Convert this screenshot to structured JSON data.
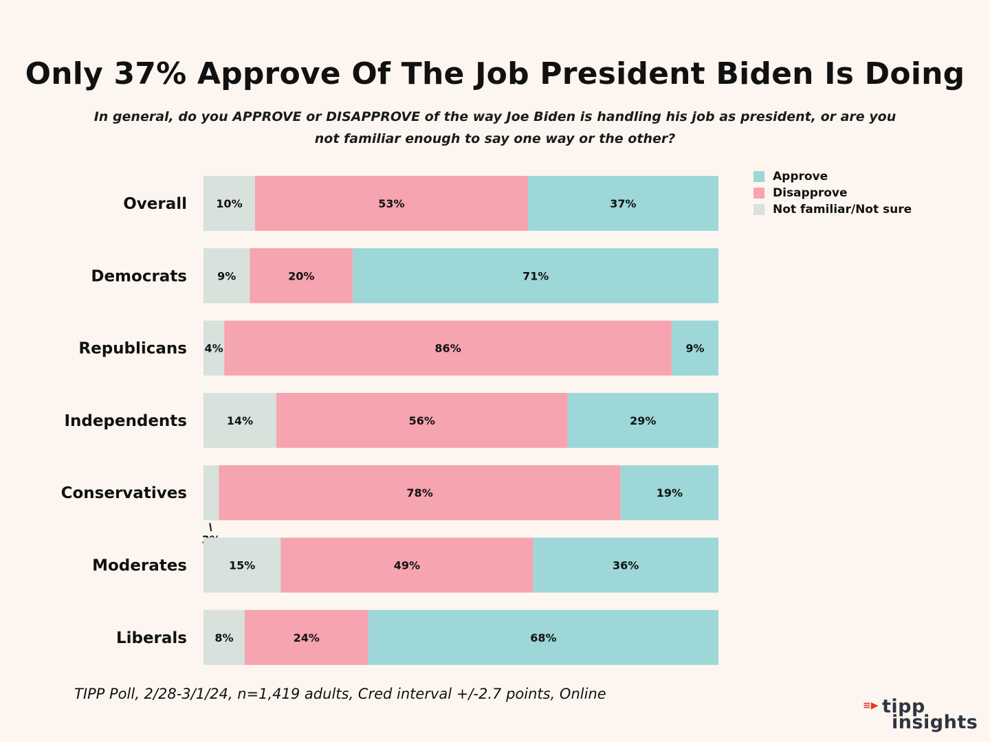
{
  "title": "Only 37% Approve Of The Job President Biden Is Doing",
  "subtitle": "In general, do you APPROVE or DISAPPROVE of the way Joe Biden is handling his job as president, or are you not familiar enough to say one way or the other?",
  "footer": "TIPP Poll, 2/28-3/1/24, n=1,419 adults, Cred interval +/-2.7 points, Online",
  "logo": {
    "mark": "≡▶",
    "line1": "tipp",
    "line2": "insights"
  },
  "colors": {
    "approve": "#9dd7d7",
    "disapprove": "#f5a4b0",
    "not_sure": "#d8e1dc",
    "background": "#fdf6f0"
  },
  "legend": [
    {
      "label": "Approve",
      "color": "#9dd7d7"
    },
    {
      "label": "Disapprove",
      "color": "#f5a4b0"
    },
    {
      "label": "Not familiar/Not sure",
      "color": "#d8e1dc"
    }
  ],
  "chart_data": {
    "type": "bar",
    "stacked": true,
    "orientation": "horizontal",
    "categories": [
      "Overall",
      "Democrats",
      "Republicans",
      "Independents",
      "Conservatives",
      "Moderates",
      "Liberals"
    ],
    "series": [
      {
        "name": "Not familiar/Not sure",
        "color": "#d8e1dc",
        "values": [
          10,
          9,
          4,
          14,
          3,
          15,
          8
        ]
      },
      {
        "name": "Disapprove",
        "color": "#f5a4b0",
        "values": [
          53,
          20,
          86,
          56,
          78,
          49,
          24
        ]
      },
      {
        "name": "Approve",
        "color": "#9dd7d7",
        "values": [
          37,
          71,
          9,
          29,
          19,
          36,
          68
        ]
      }
    ],
    "value_suffix": "%",
    "legend_position": "top-right",
    "grid": false
  }
}
